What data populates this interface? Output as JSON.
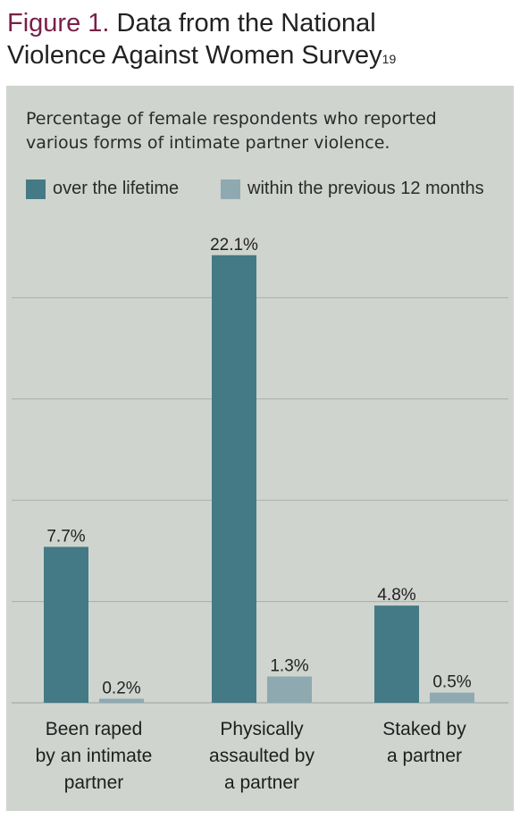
{
  "figure": {
    "number": "Figure 1.",
    "title_line1": "Data from the National",
    "title_line2": "Violence Against Women Survey",
    "reference": "19"
  },
  "chart_data": {
    "type": "bar",
    "title": "Percentage of female respondents who reported various forms of intimate partner violence.",
    "categories": [
      [
        "Been raped",
        "by an intimate",
        "partner"
      ],
      [
        "Physically",
        "assaulted by",
        "a partner"
      ],
      [
        "Staked by",
        "a partner"
      ]
    ],
    "series": [
      {
        "name": "over the lifetime",
        "values": [
          7.7,
          22.1,
          4.8
        ],
        "labels": [
          "7.7%",
          "22.1%",
          "4.8%"
        ],
        "color": "#447a85"
      },
      {
        "name": "within the previous 12 months",
        "values": [
          0.2,
          1.3,
          0.5
        ],
        "labels": [
          "0.2%",
          "1.3%",
          "0.5%"
        ],
        "color": "#8fa9b1"
      }
    ],
    "ylim": [
      0,
      24
    ],
    "gridlines": [
      5,
      10,
      15,
      20
    ],
    "grid": true,
    "legend_position": "top-left"
  }
}
